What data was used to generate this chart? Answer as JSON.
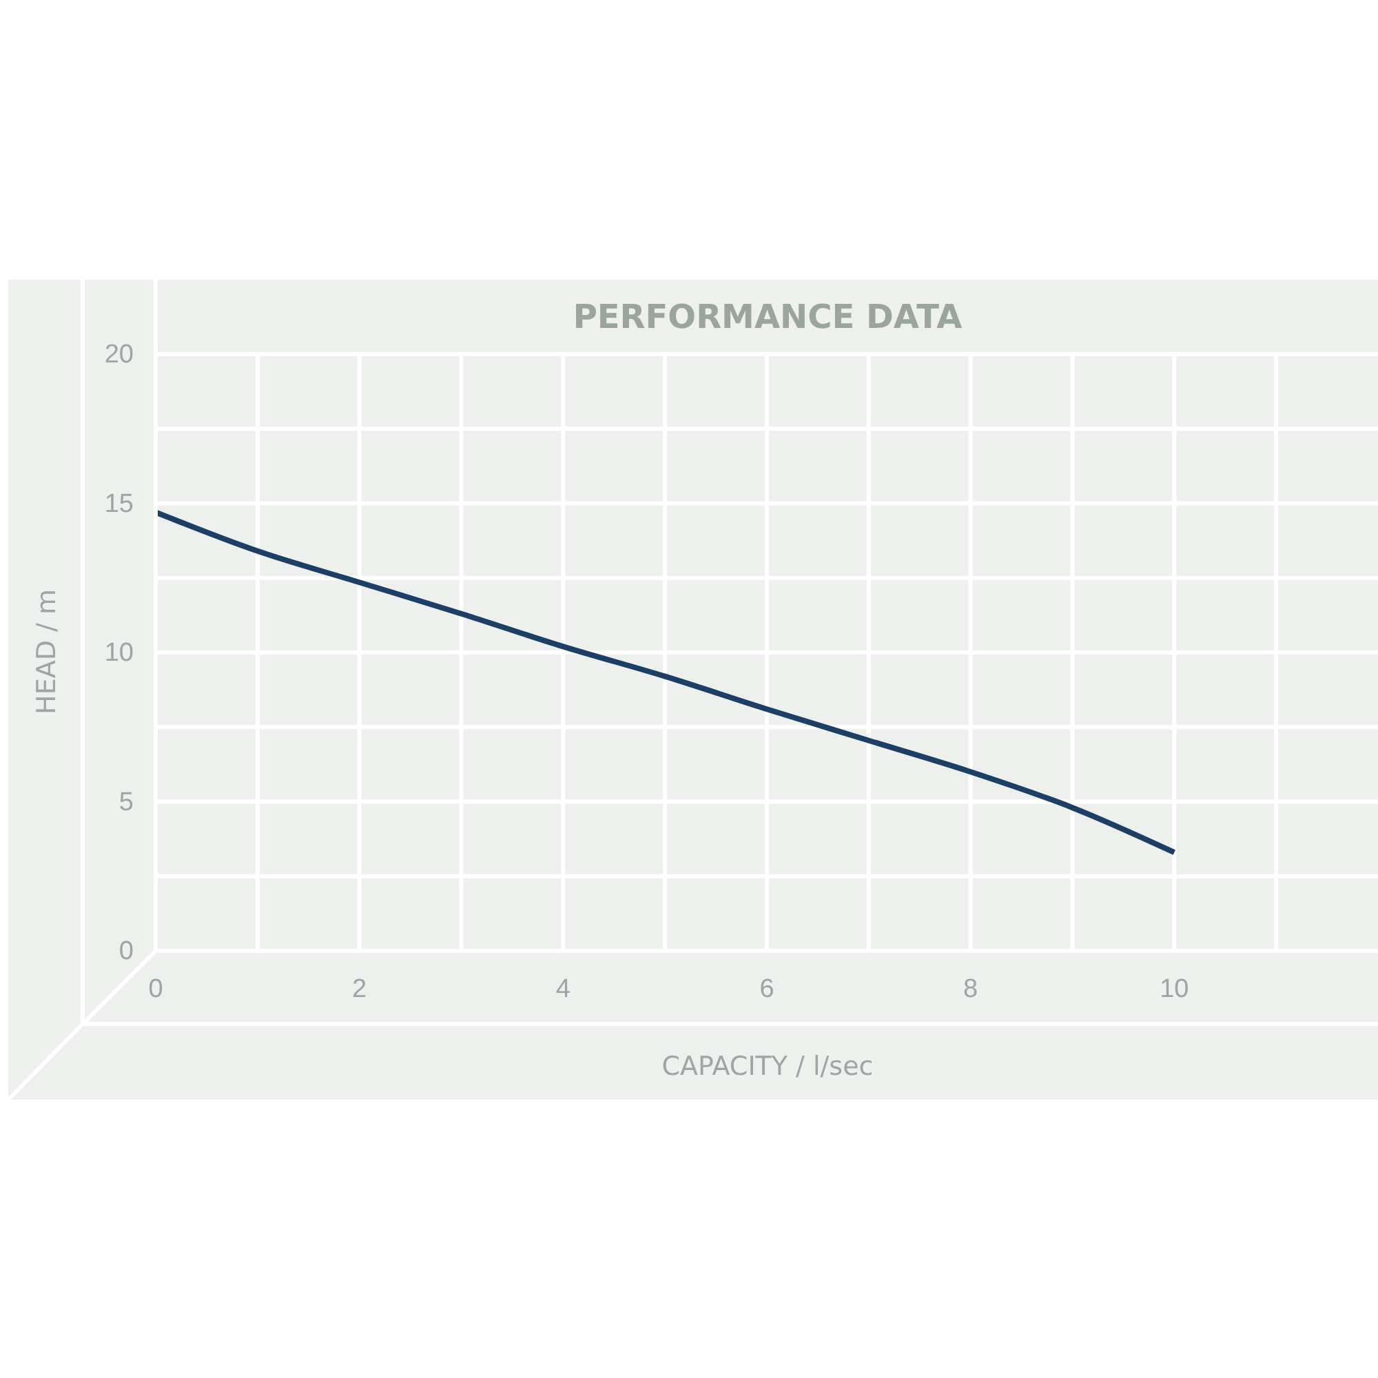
{
  "chart_data": {
    "type": "line",
    "title": "PERFORMANCE DATA",
    "xlabel": "CAPACITY / l/sec",
    "ylabel": "HEAD / m",
    "x": [
      0,
      1,
      2,
      3,
      4,
      5,
      6,
      7,
      8,
      9,
      10
    ],
    "series": [
      {
        "color": "#1d3f66",
        "values": [
          14.7,
          13.4,
          12.35,
          11.3,
          10.2,
          9.2,
          8.1,
          7.05,
          6.0,
          4.8,
          3.3
        ]
      }
    ],
    "xlim": [
      0,
      12
    ],
    "xticks": [
      0,
      {
        "value": 1,
        "label": null
      },
      2,
      {
        "value": 3,
        "label": null
      },
      4,
      {
        "value": 5,
        "label": null
      },
      6,
      {
        "value": 7,
        "label": null
      },
      8,
      {
        "value": 9,
        "label": null
      },
      10,
      {
        "value": 11,
        "label": null
      }
    ],
    "ylim": [
      0,
      20
    ],
    "yticks": [
      0,
      {
        "value": 2.5,
        "label": null
      },
      5,
      {
        "value": 7.5,
        "label": null
      },
      10,
      {
        "value": 12.5,
        "label": null
      },
      15,
      {
        "value": 17.5,
        "label": null
      },
      20
    ],
    "grid": true,
    "marker": "none",
    "line_style": "solid"
  }
}
